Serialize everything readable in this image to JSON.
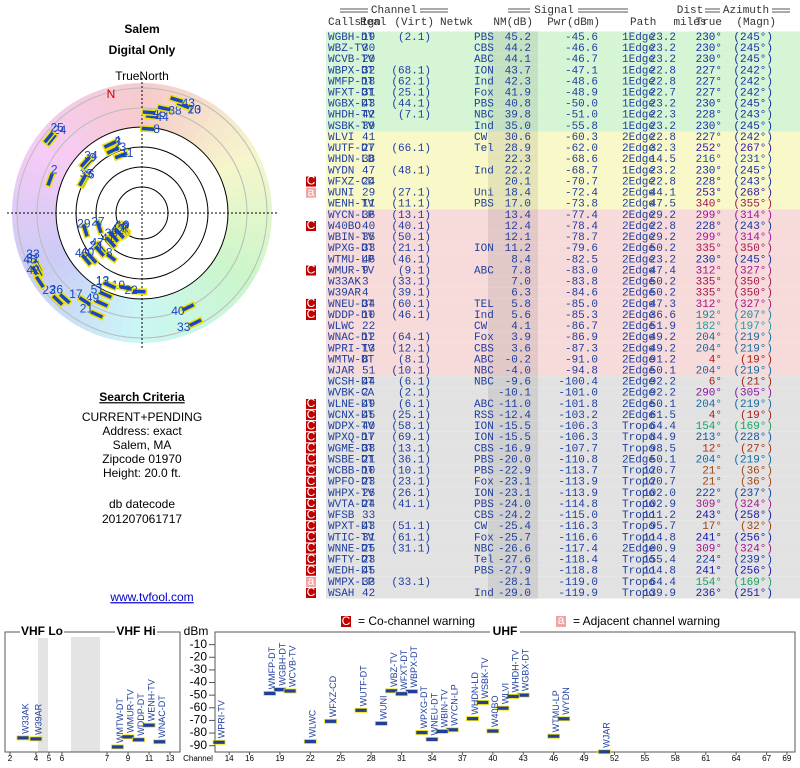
{
  "header": {
    "title": "Salem",
    "subtitle": "Digital Only"
  },
  "radar": {
    "north_label": "TrueNorth",
    "n_label": "N"
  },
  "criteria": {
    "title": "Search Criteria",
    "lines": [
      "CURRENT+PENDING",
      "Address: exact",
      "Salem, MA",
      "Zipcode 01970",
      "Height: 20.0 ft."
    ],
    "datecode_label": "db datecode",
    "datecode": "201207061717"
  },
  "link": "www.tvfool.com",
  "table": {
    "groups": {
      "channel": "Channel",
      "signal": "Signal",
      "azimuth": "Azimuth"
    },
    "columns": {
      "callsign": "Callsign",
      "real": "Real",
      "virt": "(Virt)",
      "netwk": "Netwk",
      "nm": "NM(dB)",
      "pwr": "Pwr(dBm)",
      "path": "Path",
      "dist": "Dist",
      "dist_unit": "miles",
      "az": "True",
      "magn": "(Magn)"
    },
    "rows": [
      {
        "callsign": "WGBH-DT",
        "real": "19",
        "virt": "(2.1)",
        "netwk": "PBS",
        "nm": "45.2",
        "pwr": "-45.6",
        "path": "1Edge",
        "dist": "23.2",
        "az": "230°",
        "magn": "(245°)",
        "color": "#d5f5d5"
      },
      {
        "callsign": "WBZ-TV",
        "real": "30",
        "netwk": "CBS",
        "nm": "44.2",
        "pwr": "-46.6",
        "path": "1Edge",
        "dist": "23.2",
        "az": "230°",
        "magn": "(245°)",
        "color": "#d5f5d5"
      },
      {
        "callsign": "WCVB-TV",
        "real": "20",
        "netwk": "ABC",
        "nm": "44.1",
        "pwr": "-46.7",
        "path": "1Edge",
        "dist": "23.2",
        "az": "230°",
        "magn": "(245°)",
        "color": "#d5f5d5"
      },
      {
        "callsign": "WBPX-DT",
        "real": "32",
        "virt": "(68.1)",
        "netwk": "ION",
        "nm": "43.7",
        "pwr": "-47.1",
        "path": "1Edge",
        "dist": "22.8",
        "az": "227°",
        "magn": "(242°)",
        "color": "#d5f5d5"
      },
      {
        "callsign": "WMFP-DT",
        "real": "18",
        "virt": "(62.1)",
        "netwk": "Ind",
        "nm": "42.3",
        "pwr": "-48.6",
        "path": "1Edge",
        "dist": "22.8",
        "az": "227°",
        "magn": "(242°)",
        "color": "#d5f5d5"
      },
      {
        "callsign": "WFXT-DT",
        "real": "31",
        "virt": "(25.1)",
        "netwk": "Fox",
        "nm": "41.9",
        "pwr": "-48.9",
        "path": "1Edge",
        "dist": "22.7",
        "az": "227°",
        "magn": "(242°)",
        "color": "#d5f5d5"
      },
      {
        "callsign": "WGBX-DT",
        "real": "43",
        "virt": "(44.1)",
        "netwk": "PBS",
        "nm": "40.8",
        "pwr": "-50.0",
        "path": "1Edge",
        "dist": "23.2",
        "az": "230°",
        "magn": "(245°)",
        "color": "#d5f5d5"
      },
      {
        "callsign": "WHDH-TV",
        "real": "42",
        "virt": "(7.1)",
        "netwk": "NBC",
        "nm": "39.8",
        "pwr": "-51.0",
        "path": "1Edge",
        "dist": "22.3",
        "az": "228°",
        "magn": "(243°)",
        "color": "#d5f5d5"
      },
      {
        "callsign": "WSBK-TV",
        "real": "39",
        "netwk": "Ind",
        "nm": "35.0",
        "pwr": "-55.8",
        "path": "1Edge",
        "dist": "23.2",
        "az": "230°",
        "magn": "(245°)",
        "color": "#d5f5d5"
      },
      {
        "callsign": "WLVI",
        "real": "41",
        "netwk": "CW",
        "nm": "30.6",
        "pwr": "-60.3",
        "path": "2Edge",
        "dist": "22.8",
        "az": "227°",
        "magn": "(242°)",
        "color": "#f8f8c8"
      },
      {
        "callsign": "WUTF-DT",
        "real": "27",
        "virt": "(66.1)",
        "netwk": "Tel",
        "nm": "28.9",
        "pwr": "-62.0",
        "path": "2Edge",
        "dist": "32.3",
        "az": "252°",
        "magn": "(267°)",
        "color": "#f8f8c8"
      },
      {
        "callsign": "WHDN-LD",
        "real": "38",
        "nm": "22.3",
        "pwr": "-68.6",
        "path": "2Edge",
        "dist": "14.5",
        "az": "216°",
        "magn": "(231°)",
        "color": "#f8f8c8"
      },
      {
        "callsign": "WYDN",
        "real": "47",
        "virt": "(48.1)",
        "netwk": "Ind",
        "nm": "22.2",
        "pwr": "-68.7",
        "path": "1Edge",
        "dist": "23.2",
        "az": "230°",
        "magn": "(245°)",
        "color": "#f8f8c8"
      },
      {
        "callsign": "WFXZ-CD",
        "real": "24",
        "nm": "20.1",
        "pwr": "-70.7",
        "path": "2Edge",
        "dist": "22.8",
        "az": "228°",
        "magn": "(243°)",
        "color": "#f8f8c8",
        "warn": "C"
      },
      {
        "callsign": "WUNI",
        "real": "29",
        "virt": "(27.1)",
        "netwk": "Uni",
        "nm": "18.4",
        "pwr": "-72.4",
        "path": "2Edge",
        "dist": "44.1",
        "az": "253°",
        "magn": "(268°)",
        "color": "#f8f8c8",
        "warn": "a"
      },
      {
        "callsign": "WENH-TV",
        "real": "11",
        "virt": "(11.1)",
        "netwk": "PBS",
        "nm": "17.0",
        "pwr": "-73.8",
        "path": "2Edge",
        "dist": "47.5",
        "az": "340°",
        "magn": "(355°)",
        "color": "#f8f8c8"
      },
      {
        "callsign": "WYCN-LP",
        "real": "36",
        "virt": "(13.1)",
        "nm": "13.4",
        "pwr": "-77.4",
        "path": "2Edge",
        "dist": "29.2",
        "az": "299°",
        "magn": "(314°)",
        "color": "#f7dada"
      },
      {
        "callsign": "W40BO",
        "real": "40",
        "virt": "(40.1)",
        "nm": "12.4",
        "pwr": "-78.4",
        "path": "2Edge",
        "dist": "22.8",
        "az": "228°",
        "magn": "(243°)",
        "color": "#f7dada",
        "warn": "C"
      },
      {
        "callsign": "WBIN-TV",
        "real": "35",
        "virt": "(50.1)",
        "nm": "12.1",
        "pwr": "-78.7",
        "path": "2Edge",
        "dist": "29.2",
        "az": "299°",
        "magn": "(314°)",
        "color": "#f7dada"
      },
      {
        "callsign": "WPXG-DT",
        "real": "33",
        "virt": "(21.1)",
        "netwk": "ION",
        "nm": "11.2",
        "pwr": "-79.6",
        "path": "2Edge",
        "dist": "50.2",
        "az": "335°",
        "magn": "(350°)",
        "color": "#f7dada"
      },
      {
        "callsign": "WTMU-LP",
        "real": "46",
        "virt": "(46.1)",
        "nm": "8.4",
        "pwr": "-82.5",
        "path": "2Edge",
        "dist": "23.2",
        "az": "230°",
        "magn": "(245°)",
        "color": "#f7dada"
      },
      {
        "callsign": "WMUR-TV",
        "real": "9",
        "virt": "(9.1)",
        "netwk": "ABC",
        "nm": "7.8",
        "pwr": "-83.0",
        "path": "2Edge",
        "dist": "47.4",
        "az": "312°",
        "magn": "(327°)",
        "color": "#f7dada",
        "warn": "C"
      },
      {
        "callsign": "W33AK",
        "real": "3",
        "virt": "(33.1)",
        "nm": "7.0",
        "pwr": "-83.8",
        "path": "2Edge",
        "dist": "50.2",
        "az": "335°",
        "magn": "(350°)",
        "color": "#f7dada"
      },
      {
        "callsign": "W39AR",
        "real": "4",
        "virt": "(39.1)",
        "nm": "6.3",
        "pwr": "-84.6",
        "path": "2Edge",
        "dist": "50.2",
        "az": "335°",
        "magn": "(350°)",
        "color": "#f7dada"
      },
      {
        "callsign": "WNEU-DT",
        "real": "34",
        "virt": "(60.1)",
        "netwk": "TEL",
        "nm": "5.8",
        "pwr": "-85.0",
        "path": "2Edge",
        "dist": "47.3",
        "az": "312°",
        "magn": "(327°)",
        "color": "#f7dada",
        "warn": "C"
      },
      {
        "callsign": "WDDP-DT",
        "real": "10",
        "virt": "(46.1)",
        "netwk": "Ind",
        "nm": "5.6",
        "pwr": "-85.3",
        "path": "2Edge",
        "dist": "36.6",
        "az": "192°",
        "magn": "(207°)",
        "color": "#f7dada",
        "warn": "C"
      },
      {
        "callsign": "WLWC",
        "real": "22",
        "netwk": "CW",
        "nm": "4.1",
        "pwr": "-86.7",
        "path": "2Edge",
        "dist": "51.9",
        "az": "182°",
        "magn": "(197°)",
        "color": "#f7dada"
      },
      {
        "callsign": "WNAC-DT",
        "real": "12",
        "virt": "(64.1)",
        "netwk": "Fox",
        "nm": "3.9",
        "pwr": "-86.9",
        "path": "2Edge",
        "dist": "49.2",
        "az": "204°",
        "magn": "(219°)",
        "color": "#f7dada"
      },
      {
        "callsign": "WPRI-TV",
        "real": "13",
        "virt": "(12.1)",
        "netwk": "CBS",
        "nm": "3.6",
        "pwr": "-87.3",
        "path": "2Edge",
        "dist": "49.2",
        "az": "204°",
        "magn": "(219°)",
        "color": "#f7dada"
      },
      {
        "callsign": "WMTW-DT",
        "real": "8",
        "virt": "(8.1)",
        "netwk": "ABC",
        "nm": "-0.2",
        "pwr": "-91.0",
        "path": "2Edge",
        "dist": "91.2",
        "az": "4°",
        "magn": "(19°)",
        "color": "#f7dada"
      },
      {
        "callsign": "WJAR",
        "real": "51",
        "virt": "(10.1)",
        "netwk": "NBC",
        "nm": "-4.0",
        "pwr": "-94.8",
        "path": "2Edge",
        "dist": "50.1",
        "az": "204°",
        "magn": "(219°)",
        "color": "#f7dada"
      },
      {
        "callsign": "WCSH-DT",
        "real": "44",
        "virt": "(6.1)",
        "netwk": "NBC",
        "nm": "-9.6",
        "pwr": "-100.4",
        "path": "2Edge",
        "dist": "92.2",
        "az": "6°",
        "magn": "(21°)",
        "color": "#e2e2e2"
      },
      {
        "callsign": "WVBK-CA",
        "real": "2",
        "virt": "(2.1)",
        "nm": "-10.1",
        "pwr": "-101.0",
        "path": "2Edge",
        "dist": "92.2",
        "az": "290°",
        "magn": "(305°)",
        "color": "#e2e2e2"
      },
      {
        "callsign": "WLNE-DT",
        "real": "49",
        "virt": "(6.1)",
        "netwk": "ABC",
        "nm": "-11.0",
        "pwr": "-101.8",
        "path": "2Edge",
        "dist": "50.1",
        "az": "204°",
        "magn": "(219°)",
        "color": "#e2e2e2",
        "warn": "C"
      },
      {
        "callsign": "WCNX-DT",
        "real": "45",
        "virt": "(25.1)",
        "netwk": "RSS",
        "nm": "-12.4",
        "pwr": "-103.2",
        "path": "2Edge",
        "dist": "61.5",
        "az": "4°",
        "magn": "(19°)",
        "color": "#e2e2e2",
        "warn": "C"
      },
      {
        "callsign": "WDPX-TV",
        "real": "40",
        "virt": "(58.1)",
        "netwk": "ION",
        "nm": "-15.5",
        "pwr": "-106.3",
        "path": "Tropo",
        "dist": "64.4",
        "az": "154°",
        "magn": "(169°)",
        "color": "#e2e2e2",
        "warn": "C"
      },
      {
        "callsign": "WPXQ-DT",
        "real": "17",
        "virt": "(69.1)",
        "netwk": "ION",
        "nm": "-15.5",
        "pwr": "-106.3",
        "path": "Tropo",
        "dist": "84.9",
        "az": "213°",
        "magn": "(228°)",
        "color": "#e2e2e2",
        "warn": "C"
      },
      {
        "callsign": "WGME-DT",
        "real": "38",
        "virt": "(13.1)",
        "netwk": "CBS",
        "nm": "-16.9",
        "pwr": "-107.7",
        "path": "Tropo",
        "dist": "98.5",
        "az": "12°",
        "magn": "(27°)",
        "color": "#e2e2e2",
        "warn": "C"
      },
      {
        "callsign": "WSBE-DT",
        "real": "21",
        "virt": "(36.1)",
        "netwk": "PBS",
        "nm": "-20.0",
        "pwr": "-110.8",
        "path": "2Edge",
        "dist": "50.1",
        "az": "204°",
        "magn": "(219°)",
        "color": "#e2e2e2",
        "warn": "C"
      },
      {
        "callsign": "WCBB-DT",
        "real": "10",
        "virt": "(10.1)",
        "netwk": "PBS",
        "nm": "-22.9",
        "pwr": "-113.7",
        "path": "Tropo",
        "dist": "120.7",
        "az": "21°",
        "magn": "(36°)",
        "color": "#e2e2e2",
        "warn": "C"
      },
      {
        "callsign": "WPFO-DT",
        "real": "23",
        "virt": "(23.1)",
        "netwk": "Fox",
        "nm": "-23.1",
        "pwr": "-113.9",
        "path": "Tropo",
        "dist": "120.7",
        "az": "21°",
        "magn": "(36°)",
        "color": "#e2e2e2",
        "warn": "C"
      },
      {
        "callsign": "WHPX-TV",
        "real": "26",
        "virt": "(26.1)",
        "netwk": "ION",
        "nm": "-23.1",
        "pwr": "-113.9",
        "path": "Tropo",
        "dist": "102.0",
        "az": "222°",
        "magn": "(237°)",
        "color": "#e2e2e2",
        "warn": "C"
      },
      {
        "callsign": "WVTA-DT",
        "real": "24",
        "virt": "(41.1)",
        "netwk": "PBS",
        "nm": "-24.0",
        "pwr": "-114.8",
        "path": "Tropo",
        "dist": "102.9",
        "az": "309°",
        "magn": "(324°)",
        "color": "#e2e2e2",
        "warn": "C"
      },
      {
        "callsign": "WFSB",
        "real": "33",
        "netwk": "CBS",
        "nm": "-24.2",
        "pwr": "-115.0",
        "path": "Tropo",
        "dist": "111.2",
        "az": "243°",
        "magn": "(258°)",
        "color": "#e2e2e2",
        "warn": "C"
      },
      {
        "callsign": "WPXT-DT",
        "real": "43",
        "virt": "(51.1)",
        "netwk": "CW",
        "nm": "-25.4",
        "pwr": "-116.3",
        "path": "Tropo",
        "dist": "95.7",
        "az": "17°",
        "magn": "(32°)",
        "color": "#e2e2e2",
        "warn": "C"
      },
      {
        "callsign": "WTIC-TV",
        "real": "31",
        "virt": "(61.1)",
        "netwk": "Fox",
        "nm": "-25.7",
        "pwr": "-116.6",
        "path": "Tropo",
        "dist": "114.8",
        "az": "241°",
        "magn": "(256°)",
        "color": "#e2e2e2",
        "warn": "C"
      },
      {
        "callsign": "WNNE-DT",
        "real": "25",
        "virt": "(31.1)",
        "netwk": "NBC",
        "nm": "-26.6",
        "pwr": "-117.4",
        "path": "2Edge",
        "dist": "100.9",
        "az": "309°",
        "magn": "(324°)",
        "color": "#e2e2e2",
        "warn": "C"
      },
      {
        "callsign": "WFTY-DT",
        "real": "23",
        "netwk": "Tel",
        "nm": "-27.6",
        "pwr": "-118.4",
        "path": "Tropo",
        "dist": "155.4",
        "az": "224°",
        "magn": "(239°)",
        "color": "#e2e2e2",
        "warn": "C"
      },
      {
        "callsign": "WEDH-DT",
        "real": "45",
        "netwk": "PBS",
        "nm": "-27.9",
        "pwr": "-118.8",
        "path": "Tropo",
        "dist": "114.8",
        "az": "241°",
        "magn": "(256°)",
        "color": "#e2e2e2",
        "warn": "C"
      },
      {
        "callsign": "WMPX-LP",
        "real": "33",
        "virt": "(33.1)",
        "nm": "-28.1",
        "pwr": "-119.0",
        "path": "Tropo",
        "dist": "64.4",
        "az": "154°",
        "magn": "(169°)",
        "color": "#e2e2e2",
        "warn": "a"
      },
      {
        "callsign": "WSAH",
        "real": "42",
        "netwk": "Ind",
        "nm": "-29.0",
        "pwr": "-119.9",
        "path": "Tropo",
        "dist": "139.9",
        "az": "236°",
        "magn": "(251°)",
        "color": "#e2e2e2",
        "warn": "C"
      }
    ]
  },
  "legend": {
    "co_icon": "C",
    "co": "= Co-channel warning",
    "adj_icon": "a",
    "adj": "= Adjacent channel warning"
  },
  "spectrum": {
    "vhf_lo": "VHF Lo",
    "vhf_hi": "VHF Hi",
    "uhf": "UHF",
    "y_label": "dBm",
    "x_label": "Channel",
    "ylim": [
      0,
      -95
    ],
    "yticks": [
      -10,
      -20,
      -30,
      -40,
      -50,
      -60,
      -70,
      -80,
      -90
    ],
    "vhf_lo_xlim": [
      1.62,
      6.62
    ],
    "vhf_lo_ticks": [
      2,
      4,
      5,
      6
    ],
    "vhf_hi_xlim": [
      6.33,
      13.95
    ],
    "vhf_hi_ticks": [
      7,
      9,
      11,
      13
    ],
    "uhf_xlim": [
      12.6,
      69.8
    ],
    "uhf_ticks": [
      14,
      16,
      19,
      22,
      25,
      28,
      31,
      34,
      37,
      40,
      43,
      46,
      49,
      52,
      55,
      58,
      61,
      64,
      67,
      69
    ]
  }
}
